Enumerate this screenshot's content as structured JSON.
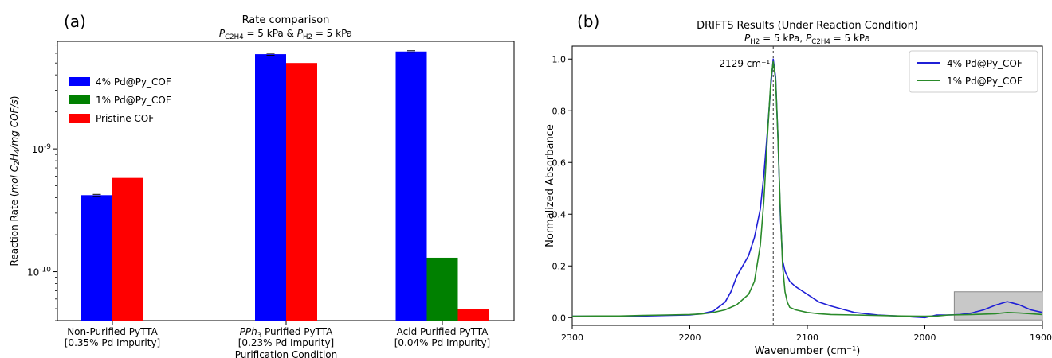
{
  "chart_data": [
    {
      "panel_label": "(a)",
      "type": "bar",
      "title": "Rate comparison",
      "subtitle": "P_C2H4 = 5 kPa & P_H2 = 5 kPa",
      "xlabel": "Purification Condition",
      "ylabel": "Reaction Rate (mol C2H4/mg COF/s)",
      "yscale": "log",
      "ylim": [
        4e-11,
        7.5e-09
      ],
      "yticks": [
        {
          "value": 1e-10,
          "label": "10^-10"
        },
        {
          "value": 1e-09,
          "label": "10^-9"
        }
      ],
      "legend_position": "upper-left",
      "categories": [
        {
          "line1": "Non-Purified PyTTA",
          "line2": "[0.35% Pd Impurity]"
        },
        {
          "line1": "PPh3 Purified PyTTA",
          "line2": "[0.23% Pd Impurity]"
        },
        {
          "line1": "Acid Purified PyTTA",
          "line2": "[0.04% Pd Impurity]"
        }
      ],
      "series": [
        {
          "name": "4% Pd@Py_COF",
          "color": "#0000ff",
          "values": [
            4.2e-10,
            5.9e-09,
            6.2e-09
          ]
        },
        {
          "name": "1% Pd@Py_COF",
          "color": "#008000",
          "values": [
            null,
            null,
            1.3e-10
          ]
        },
        {
          "name": "Pristine COF",
          "color": "#ff0000",
          "values": [
            5.8e-10,
            5e-09,
            5e-11
          ]
        }
      ]
    },
    {
      "panel_label": "(b)",
      "type": "line",
      "title": "DRIFTS Results (Under Reaction Condition)",
      "subtitle": "P_H2 = 5 kPa, P_C2H4 = 5 kPa",
      "xlabel": "Wavenumber (cm⁻¹)",
      "ylabel": "Normalized Absorbance",
      "xlim": [
        2300,
        1900
      ],
      "ylim": [
        -0.03,
        1.05
      ],
      "xticks": [
        2300,
        2200,
        2100,
        2000,
        1900
      ],
      "yticks": [
        0.0,
        0.2,
        0.4,
        0.6,
        0.8,
        1.0
      ],
      "legend_position": "upper-right",
      "annotation": {
        "text": "2129 cm⁻¹",
        "x": 2129
      },
      "highlight_region": {
        "x": [
          1975,
          1900
        ],
        "y": [
          0.0,
          0.1
        ]
      },
      "series": [
        {
          "name": "4% Pd@Py_COF",
          "color": "#1f1fd6",
          "x": [
            2300,
            2280,
            2260,
            2240,
            2220,
            2200,
            2190,
            2180,
            2170,
            2165,
            2160,
            2155,
            2150,
            2145,
            2140,
            2137,
            2134,
            2131,
            2129,
            2127,
            2125,
            2123,
            2121,
            2119,
            2117,
            2115,
            2110,
            2100,
            2090,
            2080,
            2060,
            2040,
            2020,
            2000,
            1990,
            1980,
            1970,
            1960,
            1950,
            1940,
            1930,
            1920,
            1910,
            1900
          ],
          "y": [
            0.005,
            0.005,
            0.004,
            0.006,
            0.008,
            0.01,
            0.015,
            0.025,
            0.06,
            0.1,
            0.16,
            0.2,
            0.24,
            0.31,
            0.42,
            0.55,
            0.72,
            0.9,
            1.0,
            0.93,
            0.7,
            0.4,
            0.22,
            0.18,
            0.16,
            0.14,
            0.12,
            0.09,
            0.06,
            0.045,
            0.02,
            0.01,
            0.005,
            0.0,
            0.01,
            0.01,
            0.012,
            0.018,
            0.03,
            0.048,
            0.062,
            0.05,
            0.03,
            0.02
          ]
        },
        {
          "name": "1% Pd@Py_COF",
          "color": "#2a8a2a",
          "x": [
            2300,
            2280,
            2260,
            2240,
            2220,
            2200,
            2190,
            2180,
            2170,
            2160,
            2155,
            2150,
            2145,
            2140,
            2137,
            2134,
            2131,
            2129,
            2127,
            2125,
            2123,
            2121,
            2119,
            2117,
            2115,
            2110,
            2100,
            2090,
            2080,
            2060,
            2040,
            2020,
            2000,
            1990,
            1980,
            1960,
            1940,
            1930,
            1920,
            1910,
            1900
          ],
          "y": [
            0.005,
            0.006,
            0.006,
            0.008,
            0.01,
            0.012,
            0.014,
            0.02,
            0.03,
            0.05,
            0.07,
            0.09,
            0.14,
            0.28,
            0.45,
            0.7,
            0.92,
            0.99,
            0.92,
            0.7,
            0.42,
            0.2,
            0.1,
            0.06,
            0.04,
            0.03,
            0.02,
            0.015,
            0.012,
            0.01,
            0.008,
            0.006,
            0.005,
            0.006,
            0.01,
            0.012,
            0.015,
            0.02,
            0.018,
            0.015,
            0.012
          ]
        }
      ]
    }
  ]
}
